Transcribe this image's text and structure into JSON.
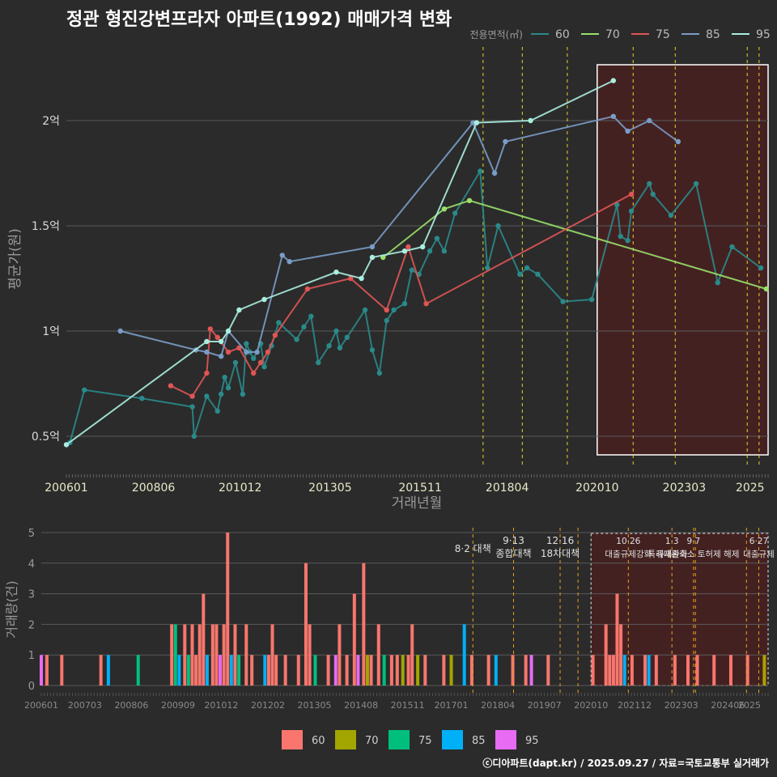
{
  "title": "정관 형진강변프라자 아파트(1992) 매매가격 변화",
  "credit": "ⓒ디아파트(dapt.kr) / 2025.09.27 / 자료=국토교통부 실거래가",
  "chart_data": [
    {
      "type": "line",
      "title": "정관 형진강변프라자 아파트(1992) 매매가격 변화",
      "xlabel": "거래년월",
      "ylabel": "평균가(원)",
      "ylim": [
        0.35,
        2.35
      ],
      "yticks": [
        {
          "v": 0.5,
          "label": "0.5억"
        },
        {
          "v": 1,
          "label": "1억"
        },
        {
          "v": 1.5,
          "label": "1.5억"
        },
        {
          "v": 2,
          "label": "2억"
        }
      ],
      "xlim": [
        2006.0,
        2025.5
      ],
      "xticks": [
        {
          "v": 2006.0,
          "label": "200601"
        },
        {
          "v": 2008.42,
          "label": "200806"
        },
        {
          "v": 2010.83,
          "label": "201012"
        },
        {
          "v": 2013.33,
          "label": "201305"
        },
        {
          "v": 2015.83,
          "label": "201511"
        },
        {
          "v": 2018.25,
          "label": "201804"
        },
        {
          "v": 2020.75,
          "label": "202010"
        },
        {
          "v": 2023.17,
          "label": "202303"
        },
        {
          "v": 2025.0,
          "label": "2025"
        }
      ],
      "legend_title": "전용면적(㎡)",
      "legend_position": "top-right",
      "event_lines": [
        2017.58,
        2018.67,
        2019.92,
        2021.75,
        2022.92,
        2024.92,
        2025.25
      ],
      "highlight_range": [
        2020.75,
        2025.5
      ],
      "series": [
        {
          "name": "60",
          "color": "#2a8a8a",
          "points": [
            [
              2006.1,
              0.47
            ],
            [
              2006.5,
              0.72
            ],
            [
              2008.1,
              0.68
            ],
            [
              2009.5,
              0.64
            ],
            [
              2009.55,
              0.5
            ],
            [
              2009.9,
              0.69
            ],
            [
              2010.2,
              0.62
            ],
            [
              2010.3,
              0.7
            ],
            [
              2010.4,
              0.78
            ],
            [
              2010.5,
              0.73
            ],
            [
              2010.7,
              0.85
            ],
            [
              2010.9,
              0.7
            ],
            [
              2011.0,
              0.94
            ],
            [
              2011.1,
              0.9
            ],
            [
              2011.2,
              0.87
            ],
            [
              2011.4,
              0.94
            ],
            [
              2011.5,
              0.83
            ],
            [
              2011.7,
              0.93
            ],
            [
              2011.9,
              1.04
            ],
            [
              2012.4,
              0.96
            ],
            [
              2012.6,
              1.02
            ],
            [
              2012.8,
              1.07
            ],
            [
              2013.0,
              0.85
            ],
            [
              2013.3,
              0.93
            ],
            [
              2013.5,
              1.0
            ],
            [
              2013.6,
              0.92
            ],
            [
              2013.8,
              0.97
            ],
            [
              2014.3,
              1.1
            ],
            [
              2014.5,
              0.91
            ],
            [
              2014.7,
              0.8
            ],
            [
              2014.9,
              1.05
            ],
            [
              2015.1,
              1.1
            ],
            [
              2015.4,
              1.13
            ],
            [
              2015.6,
              1.29
            ],
            [
              2015.8,
              1.27
            ],
            [
              2016.1,
              1.38
            ],
            [
              2016.3,
              1.44
            ],
            [
              2016.5,
              1.38
            ],
            [
              2016.8,
              1.56
            ],
            [
              2017.5,
              1.76
            ],
            [
              2017.7,
              1.3
            ],
            [
              2018.0,
              1.5
            ],
            [
              2018.6,
              1.27
            ],
            [
              2018.8,
              1.3
            ],
            [
              2019.1,
              1.27
            ],
            [
              2019.8,
              1.14
            ],
            [
              2020.6,
              1.15
            ],
            [
              2021.3,
              1.6
            ],
            [
              2021.4,
              1.45
            ],
            [
              2021.6,
              1.43
            ],
            [
              2021.7,
              1.57
            ],
            [
              2022.2,
              1.7
            ],
            [
              2022.3,
              1.65
            ],
            [
              2022.8,
              1.55
            ],
            [
              2023.5,
              1.7
            ],
            [
              2024.1,
              1.23
            ],
            [
              2024.5,
              1.4
            ],
            [
              2025.3,
              1.3
            ]
          ]
        },
        {
          "name": "70",
          "color": "#99e06a",
          "points": [
            [
              2014.8,
              1.35
            ],
            [
              2016.5,
              1.58
            ],
            [
              2017.2,
              1.62
            ],
            [
              2025.45,
              1.2
            ]
          ]
        },
        {
          "name": "75",
          "color": "#e05555",
          "points": [
            [
              2008.9,
              0.74
            ],
            [
              2009.5,
              0.69
            ],
            [
              2009.9,
              0.8
            ],
            [
              2010.0,
              1.01
            ],
            [
              2010.2,
              0.97
            ],
            [
              2010.5,
              0.9
            ],
            [
              2010.8,
              0.92
            ],
            [
              2011.2,
              0.8
            ],
            [
              2011.4,
              0.85
            ],
            [
              2011.6,
              0.9
            ],
            [
              2011.8,
              0.98
            ],
            [
              2012.7,
              1.2
            ],
            [
              2013.9,
              1.25
            ],
            [
              2014.9,
              1.1
            ],
            [
              2015.5,
              1.4
            ],
            [
              2016.0,
              1.13
            ],
            [
              2021.7,
              1.65
            ]
          ]
        },
        {
          "name": "85",
          "color": "#7a9cc6",
          "points": [
            [
              2007.5,
              1.0
            ],
            [
              2009.6,
              0.91
            ],
            [
              2009.9,
              0.9
            ],
            [
              2010.3,
              0.88
            ],
            [
              2010.5,
              1.0
            ],
            [
              2011.0,
              0.9
            ],
            [
              2011.3,
              0.9
            ],
            [
              2012.0,
              1.36
            ],
            [
              2012.2,
              1.33
            ],
            [
              2014.5,
              1.4
            ],
            [
              2017.3,
              1.99
            ],
            [
              2017.9,
              1.75
            ],
            [
              2018.2,
              1.9
            ],
            [
              2021.2,
              2.02
            ],
            [
              2021.6,
              1.95
            ],
            [
              2022.2,
              2.0
            ],
            [
              2023.0,
              1.9
            ]
          ]
        },
        {
          "name": "95",
          "color": "#aaeee0",
          "points": [
            [
              2006.0,
              0.46
            ],
            [
              2009.9,
              0.95
            ],
            [
              2010.3,
              0.95
            ],
            [
              2010.5,
              1.0
            ],
            [
              2010.8,
              1.1
            ],
            [
              2011.5,
              1.15
            ],
            [
              2013.5,
              1.28
            ],
            [
              2014.2,
              1.25
            ],
            [
              2014.5,
              1.35
            ],
            [
              2015.4,
              1.38
            ],
            [
              2015.9,
              1.4
            ],
            [
              2017.4,
              1.99
            ],
            [
              2018.9,
              2.0
            ],
            [
              2021.2,
              2.19
            ]
          ]
        }
      ]
    },
    {
      "type": "bar",
      "xlabel": "",
      "ylabel": "거래량(건)",
      "ylim": [
        0,
        5
      ],
      "yticks": [
        0,
        1,
        2,
        3,
        4,
        5
      ],
      "xticks": [
        {
          "v": 2006.0,
          "label": "200601"
        },
        {
          "v": 2007.17,
          "label": "200703"
        },
        {
          "v": 2008.42,
          "label": "200806"
        },
        {
          "v": 2009.67,
          "label": "200909"
        },
        {
          "v": 2010.83,
          "label": "201012"
        },
        {
          "v": 2012.08,
          "label": "201202"
        },
        {
          "v": 2013.33,
          "label": "201305"
        },
        {
          "v": 2014.58,
          "label": "201408"
        },
        {
          "v": 2015.83,
          "label": "201511"
        },
        {
          "v": 2017.0,
          "label": "201701"
        },
        {
          "v": 2018.25,
          "label": "201804"
        },
        {
          "v": 2019.5,
          "label": "201907"
        },
        {
          "v": 2020.75,
          "label": "202010"
        },
        {
          "v": 2021.92,
          "label": "202112"
        },
        {
          "v": 2023.17,
          "label": "202303"
        },
        {
          "v": 2024.42,
          "label": "202406"
        },
        {
          "v": 2025.0,
          "label": "2025"
        }
      ],
      "legend_position": "bottom",
      "legend": [
        {
          "name": "60",
          "color": "#f8766d"
        },
        {
          "name": "70",
          "color": "#a3a500"
        },
        {
          "name": "75",
          "color": "#00bf7d"
        },
        {
          "name": "85",
          "color": "#00b0f6"
        },
        {
          "name": "95",
          "color": "#e76bf3"
        }
      ],
      "events": [
        {
          "x": 2017.58,
          "lines": [
            "8·2 대책"
          ]
        },
        {
          "x": 2018.67,
          "lines": [
            "9·13",
            "종합대책"
          ]
        },
        {
          "x": 2019.92,
          "lines": [
            "12·16",
            "18차대책"
          ]
        },
        {
          "x": 2021.75,
          "lines": [
            "10·26",
            "대출규제강화"
          ]
        },
        {
          "x": 2022.92,
          "lines": [
            "1·3",
            "규제완화"
          ]
        },
        {
          "x": 2023.5,
          "lines": [
            "9·7",
            "특례대출축소 토허제 해제"
          ]
        },
        {
          "x": 2025.25,
          "lines": [
            "6·27",
            "대출규제"
          ]
        }
      ],
      "events_extra_lines": [
        2020.4,
        2023.55,
        2024.92
      ],
      "highlight_range": [
        2020.75,
        2025.5
      ],
      "bars": [
        {
          "x": 2006.0,
          "series": "95",
          "v": 1
        },
        {
          "x": 2006.15,
          "series": "60",
          "v": 1
        },
        {
          "x": 2006.55,
          "series": "60",
          "v": 1
        },
        {
          "x": 2007.6,
          "series": "60",
          "v": 1
        },
        {
          "x": 2007.8,
          "series": "85",
          "v": 1
        },
        {
          "x": 2008.6,
          "series": "75",
          "v": 1
        },
        {
          "x": 2009.5,
          "series": "60",
          "v": 2
        },
        {
          "x": 2009.6,
          "series": "75",
          "v": 2
        },
        {
          "x": 2009.7,
          "series": "85",
          "v": 1
        },
        {
          "x": 2009.85,
          "series": "60",
          "v": 2
        },
        {
          "x": 2009.95,
          "series": "75",
          "v": 1
        },
        {
          "x": 2010.05,
          "series": "60",
          "v": 2
        },
        {
          "x": 2010.15,
          "series": "60",
          "v": 1
        },
        {
          "x": 2010.25,
          "series": "60",
          "v": 2
        },
        {
          "x": 2010.35,
          "series": "60",
          "v": 3
        },
        {
          "x": 2010.45,
          "series": "85",
          "v": 1
        },
        {
          "x": 2010.6,
          "series": "60",
          "v": 2
        },
        {
          "x": 2010.7,
          "series": "60",
          "v": 2
        },
        {
          "x": 2010.8,
          "series": "95",
          "v": 1
        },
        {
          "x": 2010.9,
          "series": "60",
          "v": 2
        },
        {
          "x": 2011.0,
          "series": "60",
          "v": 5
        },
        {
          "x": 2011.1,
          "series": "85",
          "v": 1
        },
        {
          "x": 2011.2,
          "series": "60",
          "v": 2
        },
        {
          "x": 2011.3,
          "series": "75",
          "v": 1
        },
        {
          "x": 2011.5,
          "series": "60",
          "v": 2
        },
        {
          "x": 2011.65,
          "series": "60",
          "v": 1
        },
        {
          "x": 2012.0,
          "series": "85",
          "v": 1
        },
        {
          "x": 2012.1,
          "series": "60",
          "v": 1
        },
        {
          "x": 2012.2,
          "series": "60",
          "v": 2
        },
        {
          "x": 2012.3,
          "series": "60",
          "v": 1
        },
        {
          "x": 2012.55,
          "series": "60",
          "v": 1
        },
        {
          "x": 2012.9,
          "series": "60",
          "v": 1
        },
        {
          "x": 2013.1,
          "series": "60",
          "v": 4
        },
        {
          "x": 2013.2,
          "series": "60",
          "v": 2
        },
        {
          "x": 2013.35,
          "series": "75",
          "v": 1
        },
        {
          "x": 2013.7,
          "series": "60",
          "v": 1
        },
        {
          "x": 2013.9,
          "series": "95",
          "v": 1
        },
        {
          "x": 2014.0,
          "series": "60",
          "v": 2
        },
        {
          "x": 2014.2,
          "series": "60",
          "v": 1
        },
        {
          "x": 2014.4,
          "series": "60",
          "v": 3
        },
        {
          "x": 2014.5,
          "series": "95",
          "v": 1
        },
        {
          "x": 2014.65,
          "series": "60",
          "v": 4
        },
        {
          "x": 2014.75,
          "series": "70",
          "v": 1
        },
        {
          "x": 2014.85,
          "series": "60",
          "v": 1
        },
        {
          "x": 2015.05,
          "series": "60",
          "v": 2
        },
        {
          "x": 2015.2,
          "series": "75",
          "v": 1
        },
        {
          "x": 2015.4,
          "series": "60",
          "v": 1
        },
        {
          "x": 2015.55,
          "series": "60",
          "v": 1
        },
        {
          "x": 2015.7,
          "series": "70",
          "v": 1
        },
        {
          "x": 2015.85,
          "series": "60",
          "v": 1
        },
        {
          "x": 2015.95,
          "series": "60",
          "v": 2
        },
        {
          "x": 2016.1,
          "series": "70",
          "v": 1
        },
        {
          "x": 2016.3,
          "series": "60",
          "v": 1
        },
        {
          "x": 2016.8,
          "series": "60",
          "v": 1
        },
        {
          "x": 2017.0,
          "series": "70",
          "v": 1
        },
        {
          "x": 2017.35,
          "series": "85",
          "v": 2
        },
        {
          "x": 2017.55,
          "series": "60",
          "v": 1
        },
        {
          "x": 2018.0,
          "series": "60",
          "v": 1
        },
        {
          "x": 2018.2,
          "series": "85",
          "v": 1
        },
        {
          "x": 2018.65,
          "series": "60",
          "v": 1
        },
        {
          "x": 2019.0,
          "series": "60",
          "v": 1
        },
        {
          "x": 2019.15,
          "series": "95",
          "v": 1
        },
        {
          "x": 2019.6,
          "series": "60",
          "v": 1
        },
        {
          "x": 2020.8,
          "series": "60",
          "v": 1
        },
        {
          "x": 2021.15,
          "series": "60",
          "v": 2
        },
        {
          "x": 2021.25,
          "series": "60",
          "v": 1
        },
        {
          "x": 2021.35,
          "series": "60",
          "v": 1
        },
        {
          "x": 2021.45,
          "series": "60",
          "v": 3
        },
        {
          "x": 2021.55,
          "series": "60",
          "v": 2
        },
        {
          "x": 2021.65,
          "series": "85",
          "v": 1
        },
        {
          "x": 2021.85,
          "series": "60",
          "v": 1
        },
        {
          "x": 2022.2,
          "series": "60",
          "v": 1
        },
        {
          "x": 2022.3,
          "series": "85",
          "v": 1
        },
        {
          "x": 2022.5,
          "series": "60",
          "v": 1
        },
        {
          "x": 2023.0,
          "series": "60",
          "v": 1
        },
        {
          "x": 2023.35,
          "series": "60",
          "v": 1
        },
        {
          "x": 2023.6,
          "series": "60",
          "v": 1
        },
        {
          "x": 2024.05,
          "series": "60",
          "v": 1
        },
        {
          "x": 2024.5,
          "series": "60",
          "v": 1
        },
        {
          "x": 2024.95,
          "series": "60",
          "v": 1
        },
        {
          "x": 2025.4,
          "series": "70",
          "v": 1
        }
      ]
    }
  ]
}
